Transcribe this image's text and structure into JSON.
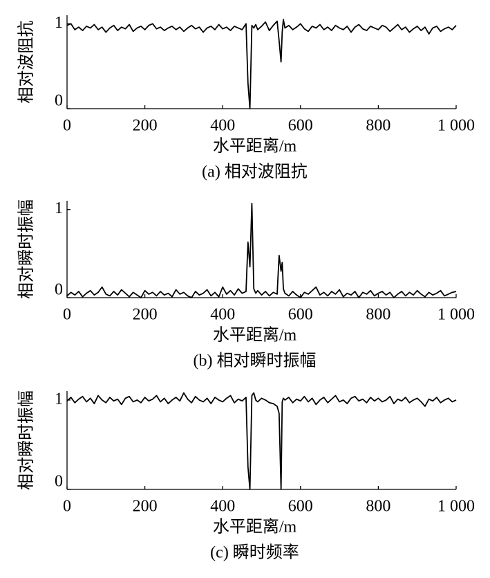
{
  "chart_data": [
    {
      "type": "line",
      "caption": "(a)  相对波阻抗",
      "xlabel": "水平距离/m",
      "ylabel": "相对波阻抗",
      "color": "#000000",
      "x": [
        0,
        10,
        20,
        30,
        40,
        50,
        60,
        70,
        80,
        90,
        100,
        110,
        120,
        130,
        140,
        150,
        160,
        170,
        180,
        190,
        200,
        210,
        220,
        230,
        240,
        250,
        260,
        270,
        280,
        290,
        300,
        310,
        320,
        330,
        340,
        350,
        360,
        370,
        380,
        390,
        400,
        410,
        420,
        430,
        440,
        450,
        460,
        465,
        470,
        475,
        480,
        485,
        490,
        500,
        510,
        520,
        530,
        540,
        545,
        550,
        553,
        556,
        560,
        570,
        580,
        590,
        600,
        610,
        620,
        630,
        640,
        650,
        660,
        670,
        680,
        690,
        700,
        710,
        720,
        730,
        740,
        750,
        760,
        770,
        780,
        790,
        800,
        810,
        820,
        830,
        840,
        850,
        860,
        870,
        880,
        890,
        900,
        910,
        920,
        930,
        940,
        950,
        960,
        970,
        980,
        990,
        1000
      ],
      "values": [
        0.98,
        1.0,
        0.93,
        0.96,
        0.92,
        0.97,
        0.95,
        0.99,
        0.93,
        0.96,
        0.9,
        0.95,
        0.98,
        0.92,
        0.96,
        0.94,
        0.99,
        0.91,
        0.95,
        0.97,
        0.93,
        0.98,
        1.0,
        0.94,
        0.96,
        0.92,
        0.95,
        0.97,
        0.93,
        0.96,
        0.91,
        0.95,
        0.98,
        0.94,
        0.96,
        0.9,
        0.95,
        0.97,
        0.93,
        0.99,
        0.94,
        0.96,
        0.92,
        0.97,
        0.95,
        0.93,
        1.0,
        0.3,
        0,
        0.98,
        0.95,
        0.99,
        0.93,
        0.97,
        1.02,
        0.92,
        0.98,
        1.03,
        0.8,
        0.55,
        0.9,
        1.05,
        0.95,
        0.98,
        0.93,
        0.96,
        1.0,
        0.94,
        0.91,
        0.97,
        0.95,
        0.99,
        0.93,
        0.96,
        0.92,
        0.98,
        0.95,
        0.93,
        0.97,
        0.9,
        0.96,
        0.99,
        0.94,
        0.92,
        0.97,
        0.95,
        0.93,
        0.98,
        0.96,
        0.91,
        0.95,
        0.99,
        0.93,
        0.96,
        0.9,
        0.94,
        0.97,
        0.92,
        0.96,
        0.88,
        0.95,
        0.97,
        0.91,
        0.94,
        0.96,
        0.93,
        0.98
      ],
      "xlim": [
        0,
        1000
      ],
      "xticks": [
        0,
        200,
        400,
        600,
        800,
        {
          "value": 1000,
          "label": "1 000"
        }
      ],
      "ylim": [
        0,
        1.1
      ],
      "yticks": [
        0,
        1
      ]
    },
    {
      "type": "line",
      "caption": "(b)  相对瞬时振幅",
      "xlabel": "水平距离/m",
      "ylabel": "相对瞬时振幅",
      "color": "#000000",
      "x": [
        0,
        10,
        20,
        30,
        40,
        50,
        60,
        70,
        80,
        90,
        100,
        110,
        120,
        130,
        140,
        150,
        160,
        170,
        180,
        190,
        200,
        210,
        220,
        230,
        240,
        250,
        260,
        270,
        280,
        290,
        300,
        310,
        320,
        330,
        340,
        350,
        360,
        370,
        380,
        390,
        400,
        410,
        420,
        430,
        440,
        450,
        460,
        465,
        470,
        475,
        480,
        485,
        490,
        500,
        510,
        520,
        530,
        540,
        545,
        550,
        553,
        556,
        560,
        570,
        580,
        590,
        600,
        610,
        620,
        630,
        640,
        650,
        660,
        670,
        680,
        690,
        700,
        710,
        720,
        730,
        740,
        750,
        760,
        770,
        780,
        790,
        800,
        810,
        820,
        830,
        840,
        850,
        860,
        870,
        880,
        890,
        900,
        910,
        920,
        930,
        940,
        950,
        960,
        970,
        980,
        990,
        1000
      ],
      "values": [
        0.02,
        0.06,
        0.03,
        0.07,
        0.01,
        0.05,
        0.08,
        0.03,
        0.06,
        0.12,
        0.04,
        0.02,
        0.07,
        0.03,
        0.09,
        0.05,
        0.01,
        0.06,
        0.03,
        0.0,
        0.08,
        0.04,
        0.06,
        0.02,
        0.07,
        0.03,
        0.05,
        0.01,
        0.09,
        0.04,
        0.06,
        0.02,
        0.0,
        0.07,
        0.03,
        0.05,
        0.09,
        0.02,
        0.06,
        0.01,
        0.12,
        0.04,
        0.08,
        0.03,
        0.1,
        0.05,
        0.07,
        0.63,
        0.35,
        1.07,
        0.1,
        0.05,
        0.08,
        0.03,
        0.07,
        0.02,
        0.06,
        0.04,
        0.48,
        0.3,
        0.4,
        0.1,
        0.05,
        0.02,
        0.07,
        0.03,
        0.0,
        0.06,
        0.04,
        0.08,
        0.12,
        0.03,
        0.06,
        0.02,
        0.07,
        0.04,
        0.09,
        0.01,
        0.05,
        0.03,
        0.07,
        0.0,
        0.06,
        0.04,
        0.08,
        0.02,
        0.05,
        0.07,
        0.03,
        0.06,
        0.0,
        0.04,
        0.07,
        0.02,
        0.06,
        0.03,
        0.08,
        0.04,
        0.01,
        0.06,
        0.03,
        0.05,
        0.08,
        0.02,
        0.04,
        0.06,
        0.07
      ],
      "xlim": [
        0,
        1000
      ],
      "xticks": [
        0,
        200,
        400,
        600,
        800,
        {
          "value": 1000,
          "label": "1 000"
        }
      ],
      "ylim": [
        0,
        1.1
      ],
      "yticks": [
        0,
        1
      ]
    },
    {
      "type": "line",
      "caption": "(c)  瞬时频率",
      "xlabel": "水平距离/m",
      "ylabel": "相对瞬时振幅",
      "color": "#000000",
      "x": [
        0,
        10,
        20,
        30,
        40,
        50,
        60,
        70,
        80,
        90,
        100,
        110,
        120,
        130,
        140,
        150,
        160,
        170,
        180,
        190,
        200,
        210,
        220,
        230,
        240,
        250,
        260,
        270,
        280,
        290,
        300,
        310,
        320,
        330,
        340,
        350,
        360,
        370,
        380,
        390,
        400,
        410,
        420,
        430,
        440,
        450,
        460,
        465,
        470,
        475,
        480,
        485,
        490,
        500,
        510,
        520,
        530,
        540,
        545,
        550,
        553,
        556,
        560,
        570,
        580,
        590,
        600,
        610,
        620,
        630,
        640,
        650,
        660,
        670,
        680,
        690,
        700,
        710,
        720,
        730,
        740,
        750,
        760,
        770,
        780,
        790,
        800,
        810,
        820,
        830,
        840,
        850,
        860,
        870,
        880,
        890,
        900,
        910,
        920,
        930,
        940,
        950,
        960,
        970,
        980,
        990,
        1000
      ],
      "values": [
        0.99,
        1.03,
        0.97,
        1.01,
        1.04,
        0.98,
        1.02,
        0.96,
        1.05,
        1.0,
        0.97,
        1.03,
        0.99,
        1.01,
        0.95,
        1.02,
        1.04,
        0.98,
        1.0,
        0.97,
        1.03,
        0.99,
        1.01,
        1.05,
        0.98,
        1.02,
        0.96,
        1.0,
        1.03,
        0.99,
        1.08,
        1.01,
        0.97,
        1.04,
        1.0,
        0.98,
        1.02,
        0.96,
        1.03,
        1.0,
        0.98,
        1.02,
        1.05,
        0.97,
        1.01,
        0.99,
        1.03,
        0.25,
        0,
        1.05,
        1.08,
        1.0,
        0.98,
        1.02,
        1.0,
        0.97,
        0.96,
        0.93,
        0.85,
        0,
        0.98,
        1.02,
        1.0,
        1.03,
        0.97,
        1.01,
        0.99,
        1.04,
        0.98,
        1.02,
        0.95,
        1.0,
        1.03,
        0.97,
        1.01,
        1.05,
        0.98,
        1.0,
        0.96,
        1.02,
        1.04,
        0.99,
        1.01,
        0.97,
        1.03,
        0.99,
        1.02,
        0.98,
        1.0,
        1.04,
        0.96,
        1.01,
        0.99,
        1.03,
        0.97,
        1.0,
        1.02,
        0.98,
        0.93,
        1.01,
        0.99,
        1.03,
        0.97,
        1.0,
        1.02,
        0.98,
        1.0
      ],
      "xlim": [
        0,
        1000
      ],
      "xticks": [
        0,
        200,
        400,
        600,
        800,
        {
          "value": 1000,
          "label": "1 000"
        }
      ],
      "ylim": [
        0,
        1.1
      ],
      "yticks": [
        0,
        1
      ]
    }
  ]
}
